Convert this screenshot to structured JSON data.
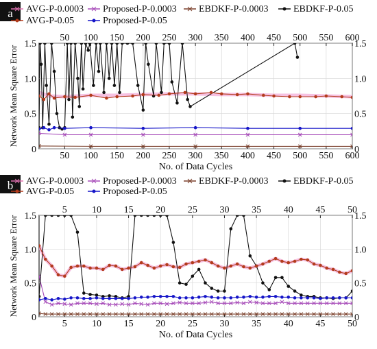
{
  "figure": {
    "panels": [
      "a",
      "b"
    ]
  },
  "chart_data": [
    {
      "type": "line",
      "panel_label": "a",
      "xlabel": "No. of Data Cycles",
      "ylabel": "Network Mean Square Error",
      "xlim": [
        1,
        600
      ],
      "ylim": [
        0,
        1.5
      ],
      "x_ticks": [
        50,
        100,
        150,
        200,
        250,
        300,
        350,
        400,
        450,
        500,
        550,
        600
      ],
      "x_ticks_top": [
        50,
        100,
        150,
        200,
        250,
        300,
        350,
        400,
        450,
        500,
        550,
        600
      ],
      "y_ticks": [
        "0",
        "0.5",
        "1.0",
        "1.5"
      ],
      "y_ticks_right": [
        "0",
        "0.5",
        "1.0",
        "1.5"
      ],
      "bottom_tick_labels": [
        "50",
        "100",
        "150",
        "200",
        "250",
        "300",
        "350",
        "400",
        "450",
        "500",
        "550",
        "600"
      ],
      "top_tick_labels": [
        "50",
        "100",
        "150",
        "200",
        "250",
        "300",
        "350",
        "400",
        "450",
        "500",
        "550",
        "600"
      ],
      "grid": true,
      "legend_position": "top",
      "legend": [
        {
          "label": "AVG-P-0.0003",
          "color": "#e070b0",
          "marker": "dash"
        },
        {
          "label": "Proposed-P-0.0003",
          "color": "#a64ab8",
          "marker": "dash"
        },
        {
          "label": "EBDKF-P-0.0003",
          "color": "#7a3f2a",
          "marker": "dash"
        },
        {
          "label": "EBDKF-P-0.05",
          "color": "#111111",
          "marker": "dot"
        },
        {
          "label": "AVG-P-0.05",
          "color": "#b33b1c",
          "marker": "dot"
        },
        {
          "label": "Proposed-P-0.05",
          "color": "#1515c8",
          "marker": "dot"
        }
      ],
      "series": [
        {
          "name": "AVG-P-0.0003",
          "color": "#f2a6d6",
          "x": [
            1,
            20,
            50,
            100,
            150,
            200,
            250,
            300,
            350,
            400,
            450,
            500,
            550,
            600
          ],
          "y": [
            0.8,
            0.75,
            0.74,
            0.76,
            0.76,
            0.77,
            0.78,
            0.78,
            0.77,
            0.77,
            0.76,
            0.76,
            0.75,
            0.74
          ]
        },
        {
          "name": "Proposed-P-0.0003",
          "color": "#a64ab8",
          "x": [
            1,
            50,
            100,
            200,
            300,
            400,
            500,
            600
          ],
          "y": [
            0.22,
            0.2,
            0.2,
            0.2,
            0.2,
            0.2,
            0.2,
            0.2
          ]
        },
        {
          "name": "EBDKF-P-0.0003",
          "color": "#7a3f2a",
          "x": [
            1,
            100,
            200,
            300,
            400,
            500,
            600
          ],
          "y": [
            0.04,
            0.035,
            0.035,
            0.035,
            0.035,
            0.035,
            0.035
          ]
        },
        {
          "name": "EBDKF-P-0.05",
          "color": "#111111",
          "x": [
            1,
            3,
            5,
            8,
            12,
            15,
            20,
            25,
            30,
            35,
            40,
            45,
            50,
            55,
            58,
            62,
            65,
            70,
            75,
            78,
            82,
            85,
            90,
            95,
            98,
            105,
            110,
            115,
            118,
            125,
            130,
            135,
            140,
            145,
            150,
            155,
            160,
            170,
            180,
            190,
            200,
            205,
            210,
            220,
            225,
            235,
            240,
            250,
            255,
            265,
            275,
            285,
            290,
            490,
            495
          ],
          "y": [
            0.3,
            1.5,
            1.2,
            0.3,
            1.5,
            0.9,
            0.35,
            1.5,
            1.1,
            0.5,
            0.3,
            0.28,
            0.3,
            1.5,
            0.7,
            1.5,
            0.45,
            1.5,
            1.0,
            0.6,
            1.5,
            0.85,
            1.5,
            1.4,
            1.5,
            0.9,
            1.5,
            1.1,
            1.5,
            0.8,
            1.5,
            1.0,
            1.5,
            0.9,
            1.5,
            0.8,
            1.5,
            1.5,
            1.5,
            0.9,
            0.55,
            1.5,
            1.2,
            0.75,
            1.5,
            0.8,
            1.5,
            1.5,
            0.95,
            0.65,
            1.5,
            0.7,
            0.6,
            1.5,
            1.3
          ]
        },
        {
          "name": "AVG-P-0.05",
          "color": "#b33b1c",
          "x": [
            1,
            10,
            20,
            30,
            50,
            70,
            100,
            130,
            150,
            180,
            200,
            230,
            250,
            280,
            300,
            330,
            350,
            380,
            400,
            430,
            450,
            480,
            500,
            530,
            550,
            580,
            600
          ],
          "y": [
            0.75,
            0.7,
            0.78,
            0.72,
            0.74,
            0.73,
            0.76,
            0.72,
            0.74,
            0.75,
            0.77,
            0.76,
            0.78,
            0.8,
            0.78,
            0.8,
            0.78,
            0.77,
            0.78,
            0.76,
            0.75,
            0.74,
            0.74,
            0.74,
            0.75,
            0.74,
            0.73
          ]
        },
        {
          "name": "Proposed-P-0.05",
          "color": "#1515c8",
          "x": [
            1,
            10,
            20,
            30,
            50,
            100,
            200,
            300,
            400,
            500,
            600
          ],
          "y": [
            0.28,
            0.3,
            0.27,
            0.3,
            0.29,
            0.3,
            0.29,
            0.3,
            0.29,
            0.29,
            0.29
          ]
        }
      ]
    },
    {
      "type": "line",
      "panel_label": "b",
      "xlabel": "No. of Data Cycles",
      "ylabel": "Network Mean Square Error",
      "xlim": [
        1,
        50
      ],
      "ylim": [
        0,
        1.5
      ],
      "x_ticks": [
        5,
        10,
        15,
        20,
        25,
        30,
        35,
        40,
        45,
        50
      ],
      "x_ticks_top": [
        5,
        10,
        15,
        20,
        25,
        30,
        35,
        40,
        45,
        50
      ],
      "y_ticks": [
        "0",
        "0.5",
        "1.0",
        "1.5"
      ],
      "y_ticks_right": [
        "0",
        "0.5",
        "1.0",
        "1.5"
      ],
      "bottom_tick_labels": [
        "5",
        "10",
        "15",
        "20",
        "25",
        "30",
        "35",
        "40",
        "45",
        "50"
      ],
      "top_tick_labels": [
        "5",
        "10",
        "15",
        "20",
        "25",
        "30",
        "35",
        "40",
        "45",
        "50"
      ],
      "grid": true,
      "legend_position": "top",
      "legend": [
        {
          "label": "AVG-P-0.0003",
          "color": "#e070b0",
          "marker": "dash"
        },
        {
          "label": "Proposed-P-0.0003",
          "color": "#a64ab8",
          "marker": "dash"
        },
        {
          "label": "EBDKF-P-0.0003",
          "color": "#7a3f2a",
          "marker": "dash"
        },
        {
          "label": "EBDKF-P-0.05",
          "color": "#111111",
          "marker": "dot"
        },
        {
          "label": "AVG-P-0.05",
          "color": "#b33b1c",
          "marker": "dot"
        },
        {
          "label": "Proposed-P-0.05",
          "color": "#1515c8",
          "marker": "dot"
        }
      ],
      "series": [
        {
          "name": "AVG-P-0.0003",
          "color": "#f2a6d6",
          "x": [
            1,
            2,
            3,
            4,
            5,
            6,
            7,
            8,
            9,
            10,
            11,
            12,
            13,
            14,
            15,
            16,
            17,
            18,
            19,
            20,
            21,
            22,
            23,
            24,
            25,
            26,
            27,
            28,
            29,
            30,
            31,
            32,
            33,
            34,
            35,
            36,
            37,
            38,
            39,
            40,
            41,
            42,
            43,
            44,
            45,
            46,
            47,
            48,
            49,
            50
          ],
          "y": [
            1.05,
            0.85,
            0.75,
            0.62,
            0.6,
            0.73,
            0.75,
            0.75,
            0.72,
            0.72,
            0.7,
            0.76,
            0.75,
            0.7,
            0.72,
            0.74,
            0.8,
            0.76,
            0.72,
            0.75,
            0.77,
            0.74,
            0.73,
            0.78,
            0.8,
            0.82,
            0.84,
            0.8,
            0.75,
            0.72,
            0.75,
            0.78,
            0.74,
            0.72,
            0.75,
            0.78,
            0.82,
            0.86,
            0.82,
            0.8,
            0.82,
            0.85,
            0.84,
            0.78,
            0.76,
            0.72,
            0.7,
            0.66,
            0.64,
            0.68
          ]
        },
        {
          "name": "Proposed-P-0.0003",
          "color": "#a64ab8",
          "x": [
            1,
            2,
            3,
            4,
            5,
            6,
            7,
            8,
            9,
            10,
            11,
            12,
            13,
            14,
            15,
            16,
            17,
            18,
            19,
            20,
            21,
            22,
            23,
            24,
            25,
            26,
            27,
            28,
            29,
            30,
            31,
            32,
            33,
            34,
            35,
            36,
            37,
            38,
            39,
            40,
            41,
            42,
            43,
            44,
            45,
            46,
            47,
            48,
            49,
            50
          ],
          "y": [
            0.6,
            0.22,
            0.18,
            0.2,
            0.19,
            0.18,
            0.2,
            0.2,
            0.2,
            0.19,
            0.2,
            0.18,
            0.18,
            0.19,
            0.18,
            0.2,
            0.19,
            0.18,
            0.2,
            0.2,
            0.19,
            0.2,
            0.21,
            0.2,
            0.2,
            0.2,
            0.21,
            0.22,
            0.2,
            0.2,
            0.2,
            0.21,
            0.2,
            0.22,
            0.21,
            0.2,
            0.2,
            0.2,
            0.22,
            0.2,
            0.2,
            0.2,
            0.2,
            0.2,
            0.2,
            0.2,
            0.2,
            0.2,
            0.2,
            0.2
          ]
        },
        {
          "name": "EBDKF-P-0.0003",
          "color": "#7a3f2a",
          "x": [
            1,
            2,
            3,
            4,
            5,
            6,
            7,
            8,
            9,
            10,
            11,
            12,
            13,
            14,
            15,
            16,
            17,
            18,
            19,
            20,
            21,
            22,
            23,
            24,
            25,
            26,
            27,
            28,
            29,
            30,
            31,
            32,
            33,
            34,
            35,
            36,
            37,
            38,
            39,
            40,
            41,
            42,
            43,
            44,
            45,
            46,
            47,
            48,
            49,
            50
          ],
          "y": [
            0.05,
            0.04,
            0.04,
            0.04,
            0.04,
            0.04,
            0.04,
            0.04,
            0.04,
            0.04,
            0.04,
            0.04,
            0.04,
            0.04,
            0.04,
            0.04,
            0.04,
            0.04,
            0.04,
            0.04,
            0.04,
            0.04,
            0.04,
            0.04,
            0.04,
            0.04,
            0.04,
            0.04,
            0.04,
            0.04,
            0.04,
            0.04,
            0.04,
            0.04,
            0.04,
            0.04,
            0.04,
            0.04,
            0.04,
            0.04,
            0.04,
            0.04,
            0.04,
            0.04,
            0.04,
            0.04,
            0.04,
            0.04,
            0.04,
            0.04
          ]
        },
        {
          "name": "EBDKF-P-0.05",
          "color": "#111111",
          "x": [
            1,
            2,
            3,
            4,
            5,
            6,
            7,
            8,
            9,
            10,
            11,
            12,
            13,
            14,
            15,
            16,
            17,
            18,
            19,
            20,
            21,
            22,
            23,
            24,
            25,
            26,
            27,
            28,
            29,
            30,
            31,
            32,
            33,
            34,
            35,
            36,
            37,
            38,
            39,
            40,
            41,
            42,
            43,
            44,
            45,
            46,
            47,
            48,
            49,
            50
          ],
          "y": [
            0.3,
            1.5,
            1.5,
            1.5,
            1.5,
            1.5,
            1.25,
            0.35,
            0.33,
            0.32,
            0.3,
            0.31,
            0.3,
            0.28,
            0.3,
            1.5,
            1.5,
            1.5,
            1.5,
            1.5,
            1.5,
            1.1,
            0.5,
            0.48,
            0.6,
            0.7,
            0.5,
            0.42,
            0.38,
            0.38,
            1.3,
            1.5,
            1.5,
            0.9,
            0.75,
            0.5,
            0.4,
            0.58,
            0.58,
            0.45,
            0.38,
            0.32,
            0.3,
            0.3,
            0.28,
            0.28,
            0.27,
            0.28,
            0.28,
            0.38
          ]
        },
        {
          "name": "AVG-P-0.05",
          "color": "#b33b1c",
          "x": [
            1,
            2,
            3,
            4,
            5,
            6,
            7,
            8,
            9,
            10,
            11,
            12,
            13,
            14,
            15,
            16,
            17,
            18,
            19,
            20,
            21,
            22,
            23,
            24,
            25,
            26,
            27,
            28,
            29,
            30,
            31,
            32,
            33,
            34,
            35,
            36,
            37,
            38,
            39,
            40,
            41,
            42,
            43,
            44,
            45,
            46,
            47,
            48,
            49,
            50
          ],
          "y": [
            1.05,
            0.85,
            0.75,
            0.62,
            0.6,
            0.73,
            0.75,
            0.75,
            0.72,
            0.72,
            0.7,
            0.76,
            0.75,
            0.7,
            0.72,
            0.74,
            0.8,
            0.76,
            0.72,
            0.75,
            0.77,
            0.74,
            0.73,
            0.78,
            0.8,
            0.82,
            0.84,
            0.8,
            0.75,
            0.72,
            0.75,
            0.78,
            0.74,
            0.72,
            0.75,
            0.78,
            0.82,
            0.86,
            0.82,
            0.8,
            0.82,
            0.85,
            0.84,
            0.78,
            0.76,
            0.72,
            0.7,
            0.66,
            0.64,
            0.68
          ]
        },
        {
          "name": "Proposed-P-0.05",
          "color": "#1515c8",
          "x": [
            1,
            2,
            3,
            4,
            5,
            6,
            7,
            8,
            9,
            10,
            11,
            12,
            13,
            14,
            15,
            16,
            17,
            18,
            19,
            20,
            21,
            22,
            23,
            24,
            25,
            26,
            27,
            28,
            29,
            30,
            31,
            32,
            33,
            34,
            35,
            36,
            37,
            38,
            39,
            40,
            41,
            42,
            43,
            44,
            45,
            46,
            47,
            48,
            49,
            50
          ],
          "y": [
            0.25,
            0.27,
            0.25,
            0.27,
            0.26,
            0.28,
            0.28,
            0.27,
            0.27,
            0.28,
            0.27,
            0.27,
            0.27,
            0.27,
            0.27,
            0.28,
            0.29,
            0.29,
            0.3,
            0.3,
            0.3,
            0.3,
            0.28,
            0.28,
            0.28,
            0.29,
            0.3,
            0.29,
            0.28,
            0.28,
            0.28,
            0.29,
            0.29,
            0.3,
            0.29,
            0.29,
            0.3,
            0.3,
            0.29,
            0.29,
            0.28,
            0.28,
            0.28,
            0.28,
            0.27,
            0.28,
            0.28,
            0.28,
            0.28,
            0.28
          ]
        }
      ]
    }
  ]
}
